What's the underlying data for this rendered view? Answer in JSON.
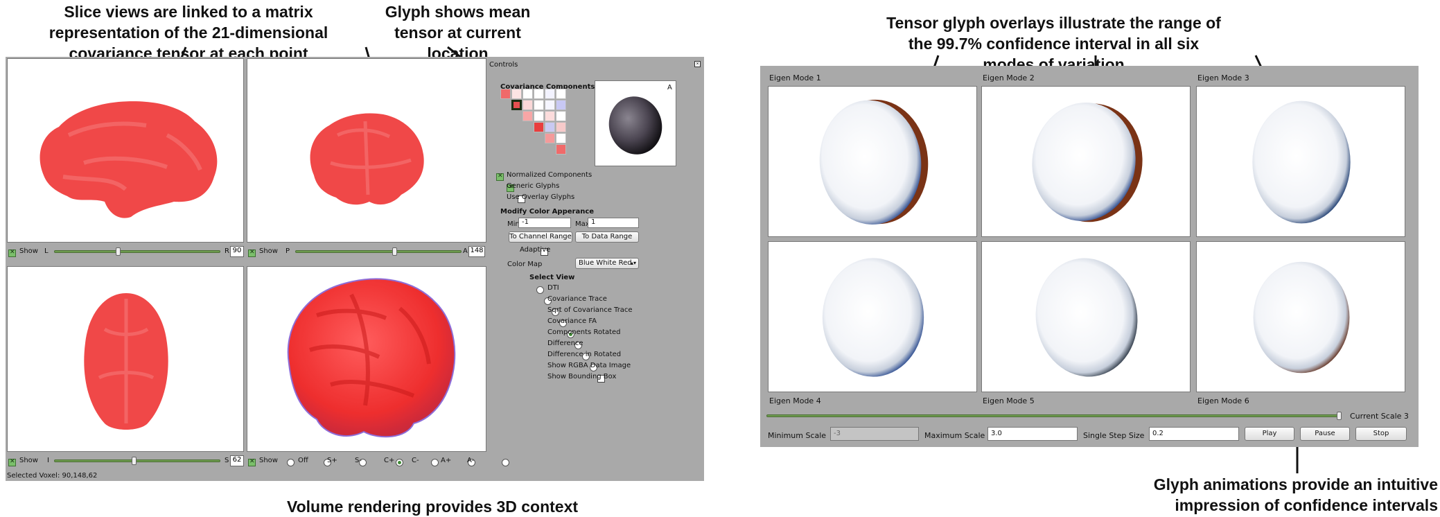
{
  "callouts": {
    "slice_views": "Slice views are linked to a matrix representation of the 21-dimensional covariance tensor at each point",
    "glyph_mean": "Glyph shows mean tensor at current location",
    "tensor_overlays": "Tensor glyph overlays illustrate the range of the 99.7% confidence interval in all six modes of variation",
    "volume_rendering": "Volume rendering provides 3D context",
    "glyph_animations": "Glyph animations provide an intuitive impression of confidence intervals"
  },
  "left_app": {
    "views": {
      "sagittal": {
        "show": "Show",
        "left_label": "L",
        "right_label": "R",
        "value": "90",
        "slider_fraction": 0.38
      },
      "coronal": {
        "show": "Show",
        "left_label": "P",
        "right_label": "A",
        "value": "148",
        "slider_fraction": 0.6
      },
      "axial": {
        "show": "Show",
        "left_label": "I",
        "right_label": "S",
        "value": "62",
        "slider_fraction": 0.48
      },
      "volume": {
        "show": "Show",
        "radios": [
          "Off",
          "S+",
          "S-",
          "C+",
          "C-",
          "A+",
          "A-"
        ],
        "selected": "C+"
      }
    },
    "selected_voxel": "Selected Voxel: 90,148,62",
    "controls": {
      "title": "Controls",
      "cov_title": "Covariance Components",
      "glyph_label": "A",
      "normalized": "Normalized Components",
      "generic": "Generic Glyphs",
      "overlay": "Use Overlay Glyphs",
      "modify_title": "Modify Color Apperance",
      "min_label": "Min",
      "min_value": "-1",
      "max_label": "Max",
      "max_value": "1",
      "to_channel": "To Channel Range",
      "to_data": "To Data Range",
      "adaptive": "Adaptive",
      "color_map_label": "Color Map",
      "color_map_value": "Blue White Red",
      "select_view_title": "Select View",
      "view_options": [
        "DTI",
        "Covariance Trace",
        "Sqrt of Covariance Trace",
        "Covariance FA",
        "Components Rotated",
        "Difference",
        "Difference in Rotated",
        "Show RGBA Data Image",
        "Show Bounding Box"
      ],
      "selected_view": "Components Rotated"
    },
    "colors": {
      "brain_red": "#f04848",
      "panel_gray": "#a9a9a9",
      "accent_green": "#6d9a4e"
    }
  },
  "right_app": {
    "modes": [
      "Eigen Mode 1",
      "Eigen Mode 2",
      "Eigen Mode 3",
      "Eigen Mode 4",
      "Eigen Mode 5",
      "Eigen Mode 6"
    ],
    "current_scale": "Current Scale 3",
    "scale_fraction": 1.0,
    "min_scale_label": "Minimum Scale",
    "min_scale_value": "-3",
    "max_scale_label": "Maximum Scale",
    "max_scale_value": "3.0",
    "step_label": "Single Step Size",
    "step_value": "0.2",
    "play": "Play",
    "pause": "Pause",
    "stop": "Stop"
  }
}
